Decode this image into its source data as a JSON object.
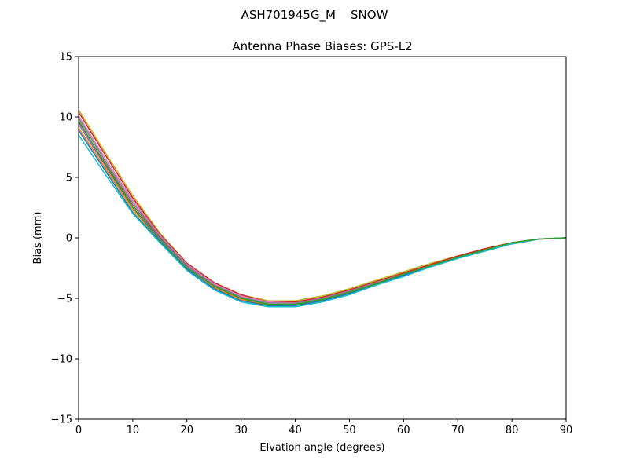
{
  "figure": {
    "suptitle": "ASH701945G_M    SNOW"
  },
  "chart_data": {
    "type": "line",
    "title": "Antenna Phase Biases: GPS-L2",
    "xlabel": "Elvation angle (degrees)",
    "ylabel": "Bias (mm)",
    "xlim": [
      0,
      90
    ],
    "ylim": [
      -15,
      15
    ],
    "xticks": [
      0,
      10,
      20,
      30,
      40,
      50,
      60,
      70,
      80,
      90
    ],
    "yticks": [
      -15,
      -10,
      -5,
      0,
      5,
      10,
      15
    ],
    "xtick_labels": [
      "0",
      "10",
      "20",
      "30",
      "40",
      "50",
      "60",
      "70",
      "80",
      "90"
    ],
    "ytick_labels": [
      "−15",
      "−10",
      "−5",
      "0",
      "5",
      "10",
      "15"
    ],
    "grid": false,
    "legend": "none",
    "x": [
      0,
      5,
      10,
      15,
      20,
      25,
      30,
      35,
      40,
      45,
      50,
      55,
      60,
      65,
      70,
      75,
      80,
      85,
      90
    ],
    "series": [
      {
        "color": "#bcbd22",
        "values": [
          10.6,
          7.0,
          3.5,
          0.4,
          -2.1,
          -3.7,
          -4.7,
          -5.2,
          -5.2,
          -4.8,
          -4.2,
          -3.5,
          -2.8,
          -2.1,
          -1.5,
          -0.9,
          -0.4,
          -0.1,
          0.0
        ]
      },
      {
        "color": "#d62728",
        "values": [
          10.4,
          6.8,
          3.3,
          0.3,
          -2.1,
          -3.7,
          -4.7,
          -5.3,
          -5.3,
          -4.9,
          -4.3,
          -3.6,
          -2.9,
          -2.2,
          -1.5,
          -0.9,
          -0.4,
          -0.1,
          0.0
        ]
      },
      {
        "color": "#e377c2",
        "values": [
          10.1,
          6.5,
          3.1,
          0.2,
          -2.2,
          -3.8,
          -4.8,
          -5.3,
          -5.4,
          -5.0,
          -4.4,
          -3.7,
          -3.0,
          -2.3,
          -1.6,
          -1.0,
          -0.5,
          -0.1,
          0.0
        ]
      },
      {
        "color": "#7f7f7f",
        "values": [
          9.9,
          6.3,
          2.9,
          0.1,
          -2.3,
          -3.9,
          -4.9,
          -5.4,
          -5.4,
          -5.0,
          -4.4,
          -3.7,
          -3.0,
          -2.3,
          -1.6,
          -1.0,
          -0.5,
          -0.1,
          0.0
        ]
      },
      {
        "color": "#8c564b",
        "values": [
          9.6,
          6.1,
          2.7,
          0.0,
          -2.4,
          -4.0,
          -5.0,
          -5.5,
          -5.5,
          -5.1,
          -4.5,
          -3.8,
          -3.0,
          -2.3,
          -1.6,
          -1.0,
          -0.5,
          -0.1,
          0.0
        ]
      },
      {
        "color": "#9467bd",
        "values": [
          9.4,
          5.9,
          2.5,
          -0.1,
          -2.4,
          -4.0,
          -5.0,
          -5.5,
          -5.5,
          -5.1,
          -4.5,
          -3.8,
          -3.1,
          -2.4,
          -1.7,
          -1.0,
          -0.5,
          -0.1,
          0.0
        ]
      },
      {
        "color": "#ff7f0e",
        "values": [
          9.1,
          5.7,
          2.3,
          -0.2,
          -2.5,
          -4.1,
          -5.1,
          -5.6,
          -5.6,
          -5.2,
          -4.6,
          -3.9,
          -3.1,
          -2.4,
          -1.7,
          -1.0,
          -0.5,
          -0.1,
          0.0
        ]
      },
      {
        "color": "#1f77b4",
        "values": [
          8.9,
          5.5,
          2.1,
          -0.3,
          -2.6,
          -4.2,
          -5.2,
          -5.6,
          -5.6,
          -5.2,
          -4.6,
          -3.9,
          -3.1,
          -2.4,
          -1.7,
          -1.1,
          -0.5,
          -0.1,
          0.0
        ]
      },
      {
        "color": "#17becf",
        "values": [
          8.5,
          5.2,
          2.0,
          -0.4,
          -2.7,
          -4.3,
          -5.3,
          -5.7,
          -5.7,
          -5.3,
          -4.7,
          -3.9,
          -3.2,
          -2.4,
          -1.7,
          -1.1,
          -0.5,
          -0.1,
          0.0
        ]
      },
      {
        "color": "#2ca02c",
        "values": [
          9.7,
          6.0,
          2.5,
          -0.2,
          -2.5,
          -4.0,
          -5.0,
          -5.5,
          -5.5,
          -5.1,
          -4.5,
          -3.8,
          -3.0,
          -2.3,
          -1.6,
          -1.0,
          -0.4,
          -0.1,
          0.0
        ]
      }
    ]
  }
}
